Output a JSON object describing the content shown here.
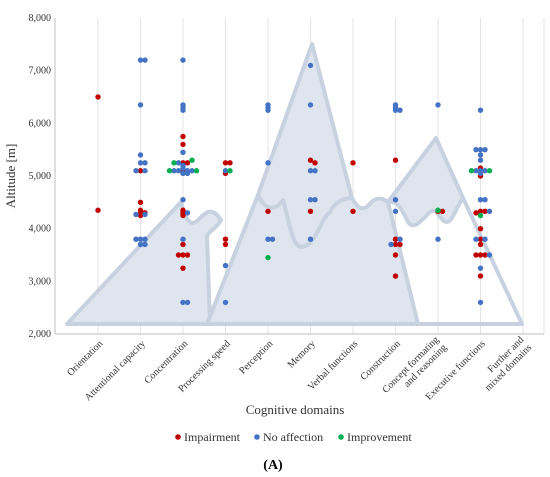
{
  "chart_data": {
    "type": "scatter",
    "ylabel": "Altitude [m]",
    "xlabel": "Cognitive domains",
    "panel_label": "(A)",
    "ylim": [
      2000,
      8000
    ],
    "yticks": [
      "2,000",
      "3,000",
      "4,000",
      "5,000",
      "6,000",
      "7,000",
      "8,000"
    ],
    "ytick_values": [
      2000,
      3000,
      4000,
      5000,
      6000,
      7000,
      8000
    ],
    "categories": [
      [
        "Orientation"
      ],
      [
        "Attentional capacity"
      ],
      [
        "Concentration"
      ],
      [
        "Processing speed"
      ],
      [
        "Perception"
      ],
      [
        "Memory"
      ],
      [
        "Verbal functions"
      ],
      [
        "Construction"
      ],
      [
        "Concept formating",
        "and reasoning"
      ],
      [
        "Executive functions"
      ],
      [
        "Further and",
        "mixed domains"
      ]
    ],
    "grid": "vertical",
    "legend_position": "bottom",
    "colors": {
      "Impairment": "#c00000",
      "No affection": "#4472c4",
      "Improvement": "#00b050",
      "mountain_fill": "#dfe5ee",
      "mountain_stroke": "#c7d1e0"
    },
    "series": [
      {
        "name": "Impairment",
        "color": "#c00000",
        "points": [
          [
            0,
            6500
          ],
          [
            0,
            4350
          ],
          [
            1,
            5100
          ],
          [
            1,
            4500
          ],
          [
            1,
            4350
          ],
          [
            1,
            4300
          ],
          [
            1,
            4300
          ],
          [
            1,
            4250
          ],
          [
            2,
            5750
          ],
          [
            2,
            5600
          ],
          [
            2,
            5250
          ],
          [
            2,
            5250
          ],
          [
            2,
            5100
          ],
          [
            2,
            4350
          ],
          [
            2,
            4300
          ],
          [
            2,
            4250
          ],
          [
            2,
            3700
          ],
          [
            2,
            3500
          ],
          [
            2,
            3500
          ],
          [
            2,
            3500
          ],
          [
            2,
            3250
          ],
          [
            3,
            5250
          ],
          [
            3,
            5250
          ],
          [
            3,
            5050
          ],
          [
            3,
            3800
          ],
          [
            3,
            3700
          ],
          [
            4,
            4330
          ],
          [
            5,
            5300
          ],
          [
            5,
            5250
          ],
          [
            5,
            4330
          ],
          [
            6,
            5250
          ],
          [
            6,
            4330
          ],
          [
            7,
            5300
          ],
          [
            7,
            3800
          ],
          [
            7,
            3700
          ],
          [
            7,
            3700
          ],
          [
            7,
            3500
          ],
          [
            7,
            3100
          ],
          [
            8,
            4330
          ],
          [
            8,
            4330
          ],
          [
            9,
            5150
          ],
          [
            9,
            5000
          ],
          [
            9,
            4330
          ],
          [
            9,
            4330
          ],
          [
            9,
            4300
          ],
          [
            9,
            4000
          ],
          [
            9,
            3800
          ],
          [
            9,
            3700
          ],
          [
            9,
            3500
          ],
          [
            9,
            3500
          ],
          [
            9,
            3500
          ],
          [
            9,
            3100
          ]
        ]
      },
      {
        "name": "No affection",
        "color": "#4472c4",
        "points": [
          [
            1,
            7200
          ],
          [
            1,
            7200
          ],
          [
            1,
            6350
          ],
          [
            1,
            5400
          ],
          [
            1,
            5250
          ],
          [
            1,
            5250
          ],
          [
            1,
            5100
          ],
          [
            1,
            5100
          ],
          [
            1,
            3800
          ],
          [
            1,
            3800
          ],
          [
            1,
            3800
          ],
          [
            1,
            3700
          ],
          [
            1,
            3700
          ],
          [
            1,
            4270
          ],
          [
            1,
            4270
          ],
          [
            2,
            7200
          ],
          [
            2,
            6350
          ],
          [
            2,
            6300
          ],
          [
            2,
            6250
          ],
          [
            2,
            5450
          ],
          [
            2,
            5250
          ],
          [
            2,
            5200
          ],
          [
            2,
            5100
          ],
          [
            2,
            5050
          ],
          [
            2,
            5050
          ],
          [
            2,
            4550
          ],
          [
            2,
            4300
          ],
          [
            2,
            3800
          ],
          [
            2,
            2600
          ],
          [
            2,
            2600
          ],
          [
            2,
            5100
          ],
          [
            2,
            5100
          ],
          [
            2,
            5150
          ],
          [
            2,
            5100
          ],
          [
            3,
            5100
          ],
          [
            3,
            3300
          ],
          [
            3,
            2600
          ],
          [
            4,
            6350
          ],
          [
            4,
            6300
          ],
          [
            4,
            6250
          ],
          [
            4,
            5250
          ],
          [
            4,
            3800
          ],
          [
            4,
            3800
          ],
          [
            5,
            7100
          ],
          [
            5,
            6350
          ],
          [
            5,
            5100
          ],
          [
            5,
            5100
          ],
          [
            5,
            4550
          ],
          [
            5,
            4550
          ],
          [
            5,
            3800
          ],
          [
            7,
            6350
          ],
          [
            7,
            6300
          ],
          [
            7,
            6250
          ],
          [
            7,
            6250
          ],
          [
            7,
            4550
          ],
          [
            7,
            4330
          ],
          [
            7,
            3800
          ],
          [
            7,
            3700
          ],
          [
            8,
            6350
          ],
          [
            8,
            3800
          ],
          [
            9,
            6250
          ],
          [
            9,
            5500
          ],
          [
            9,
            5500
          ],
          [
            9,
            5500
          ],
          [
            9,
            5400
          ],
          [
            9,
            5300
          ],
          [
            9,
            5100
          ],
          [
            9,
            5100
          ],
          [
            9,
            5100
          ],
          [
            9,
            5050
          ],
          [
            9,
            4550
          ],
          [
            9,
            4550
          ],
          [
            9,
            4330
          ],
          [
            9,
            3800
          ],
          [
            9,
            3800
          ],
          [
            9,
            3500
          ],
          [
            9,
            3250
          ],
          [
            9,
            2600
          ]
        ]
      },
      {
        "name": "Improvement",
        "color": "#00b050",
        "points": [
          [
            2,
            5300
          ],
          [
            2,
            5250
          ],
          [
            2,
            5100
          ],
          [
            2,
            5100
          ],
          [
            3,
            5100
          ],
          [
            4,
            3450
          ],
          [
            8,
            4350
          ],
          [
            9,
            5100
          ],
          [
            9,
            5100
          ],
          [
            9,
            4250
          ]
        ]
      }
    ]
  }
}
